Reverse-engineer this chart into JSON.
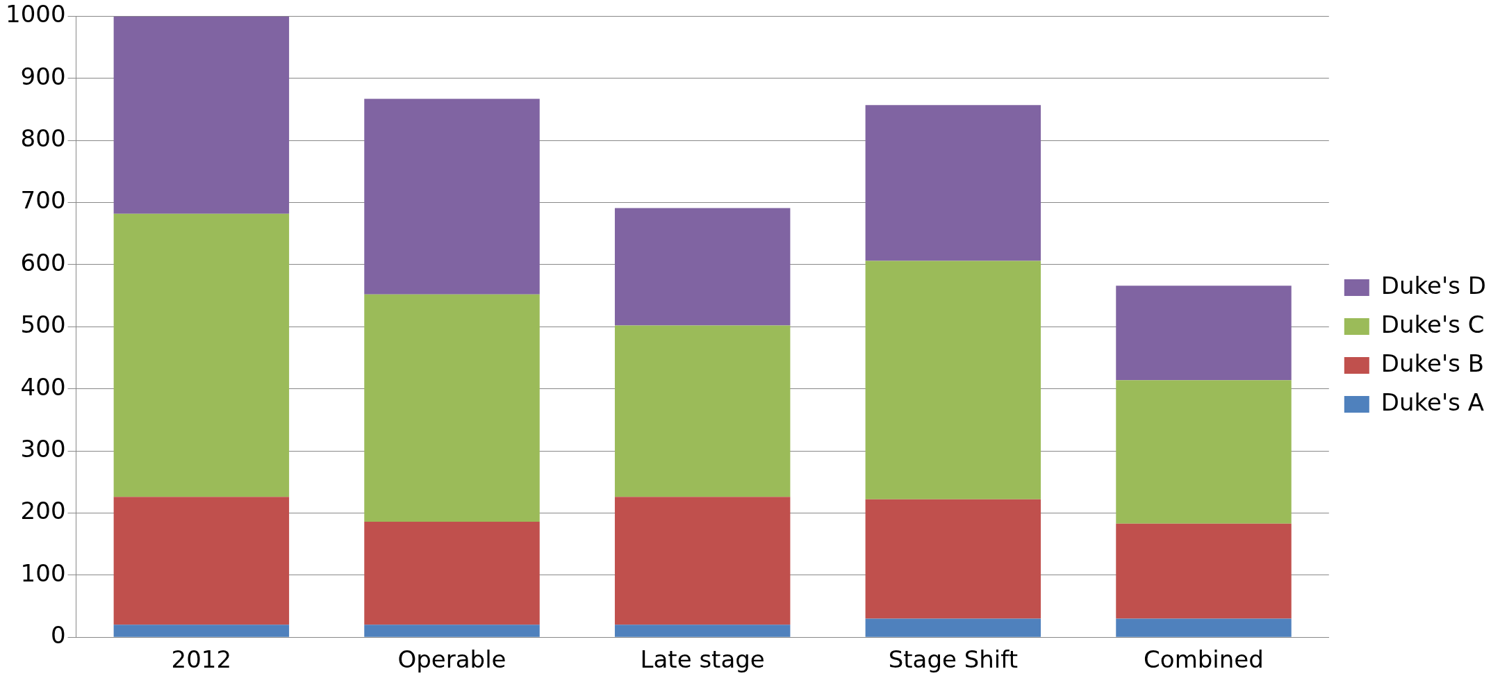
{
  "chart_data": {
    "type": "bar",
    "stacked": true,
    "categories": [
      "2012",
      "Operable",
      "Late stage",
      "Stage Shift",
      "Combined"
    ],
    "series": [
      {
        "name": "Duke's A",
        "color": "#4f81bd",
        "values": [
          20,
          20,
          20,
          30,
          30
        ]
      },
      {
        "name": "Duke's B",
        "color": "#c0504d",
        "values": [
          206,
          166,
          206,
          192,
          153
        ]
      },
      {
        "name": "Duke's C",
        "color": "#9bbb59",
        "values": [
          456,
          366,
          276,
          384,
          231
        ]
      },
      {
        "name": "Duke's D",
        "color": "#8064a2",
        "values": [
          318,
          315,
          189,
          251,
          152
        ]
      }
    ],
    "ylim": [
      0,
      1000
    ],
    "yticks": [
      0,
      100,
      200,
      300,
      400,
      500,
      600,
      700,
      800,
      900,
      1000
    ],
    "grid": "y",
    "legend": "right"
  }
}
